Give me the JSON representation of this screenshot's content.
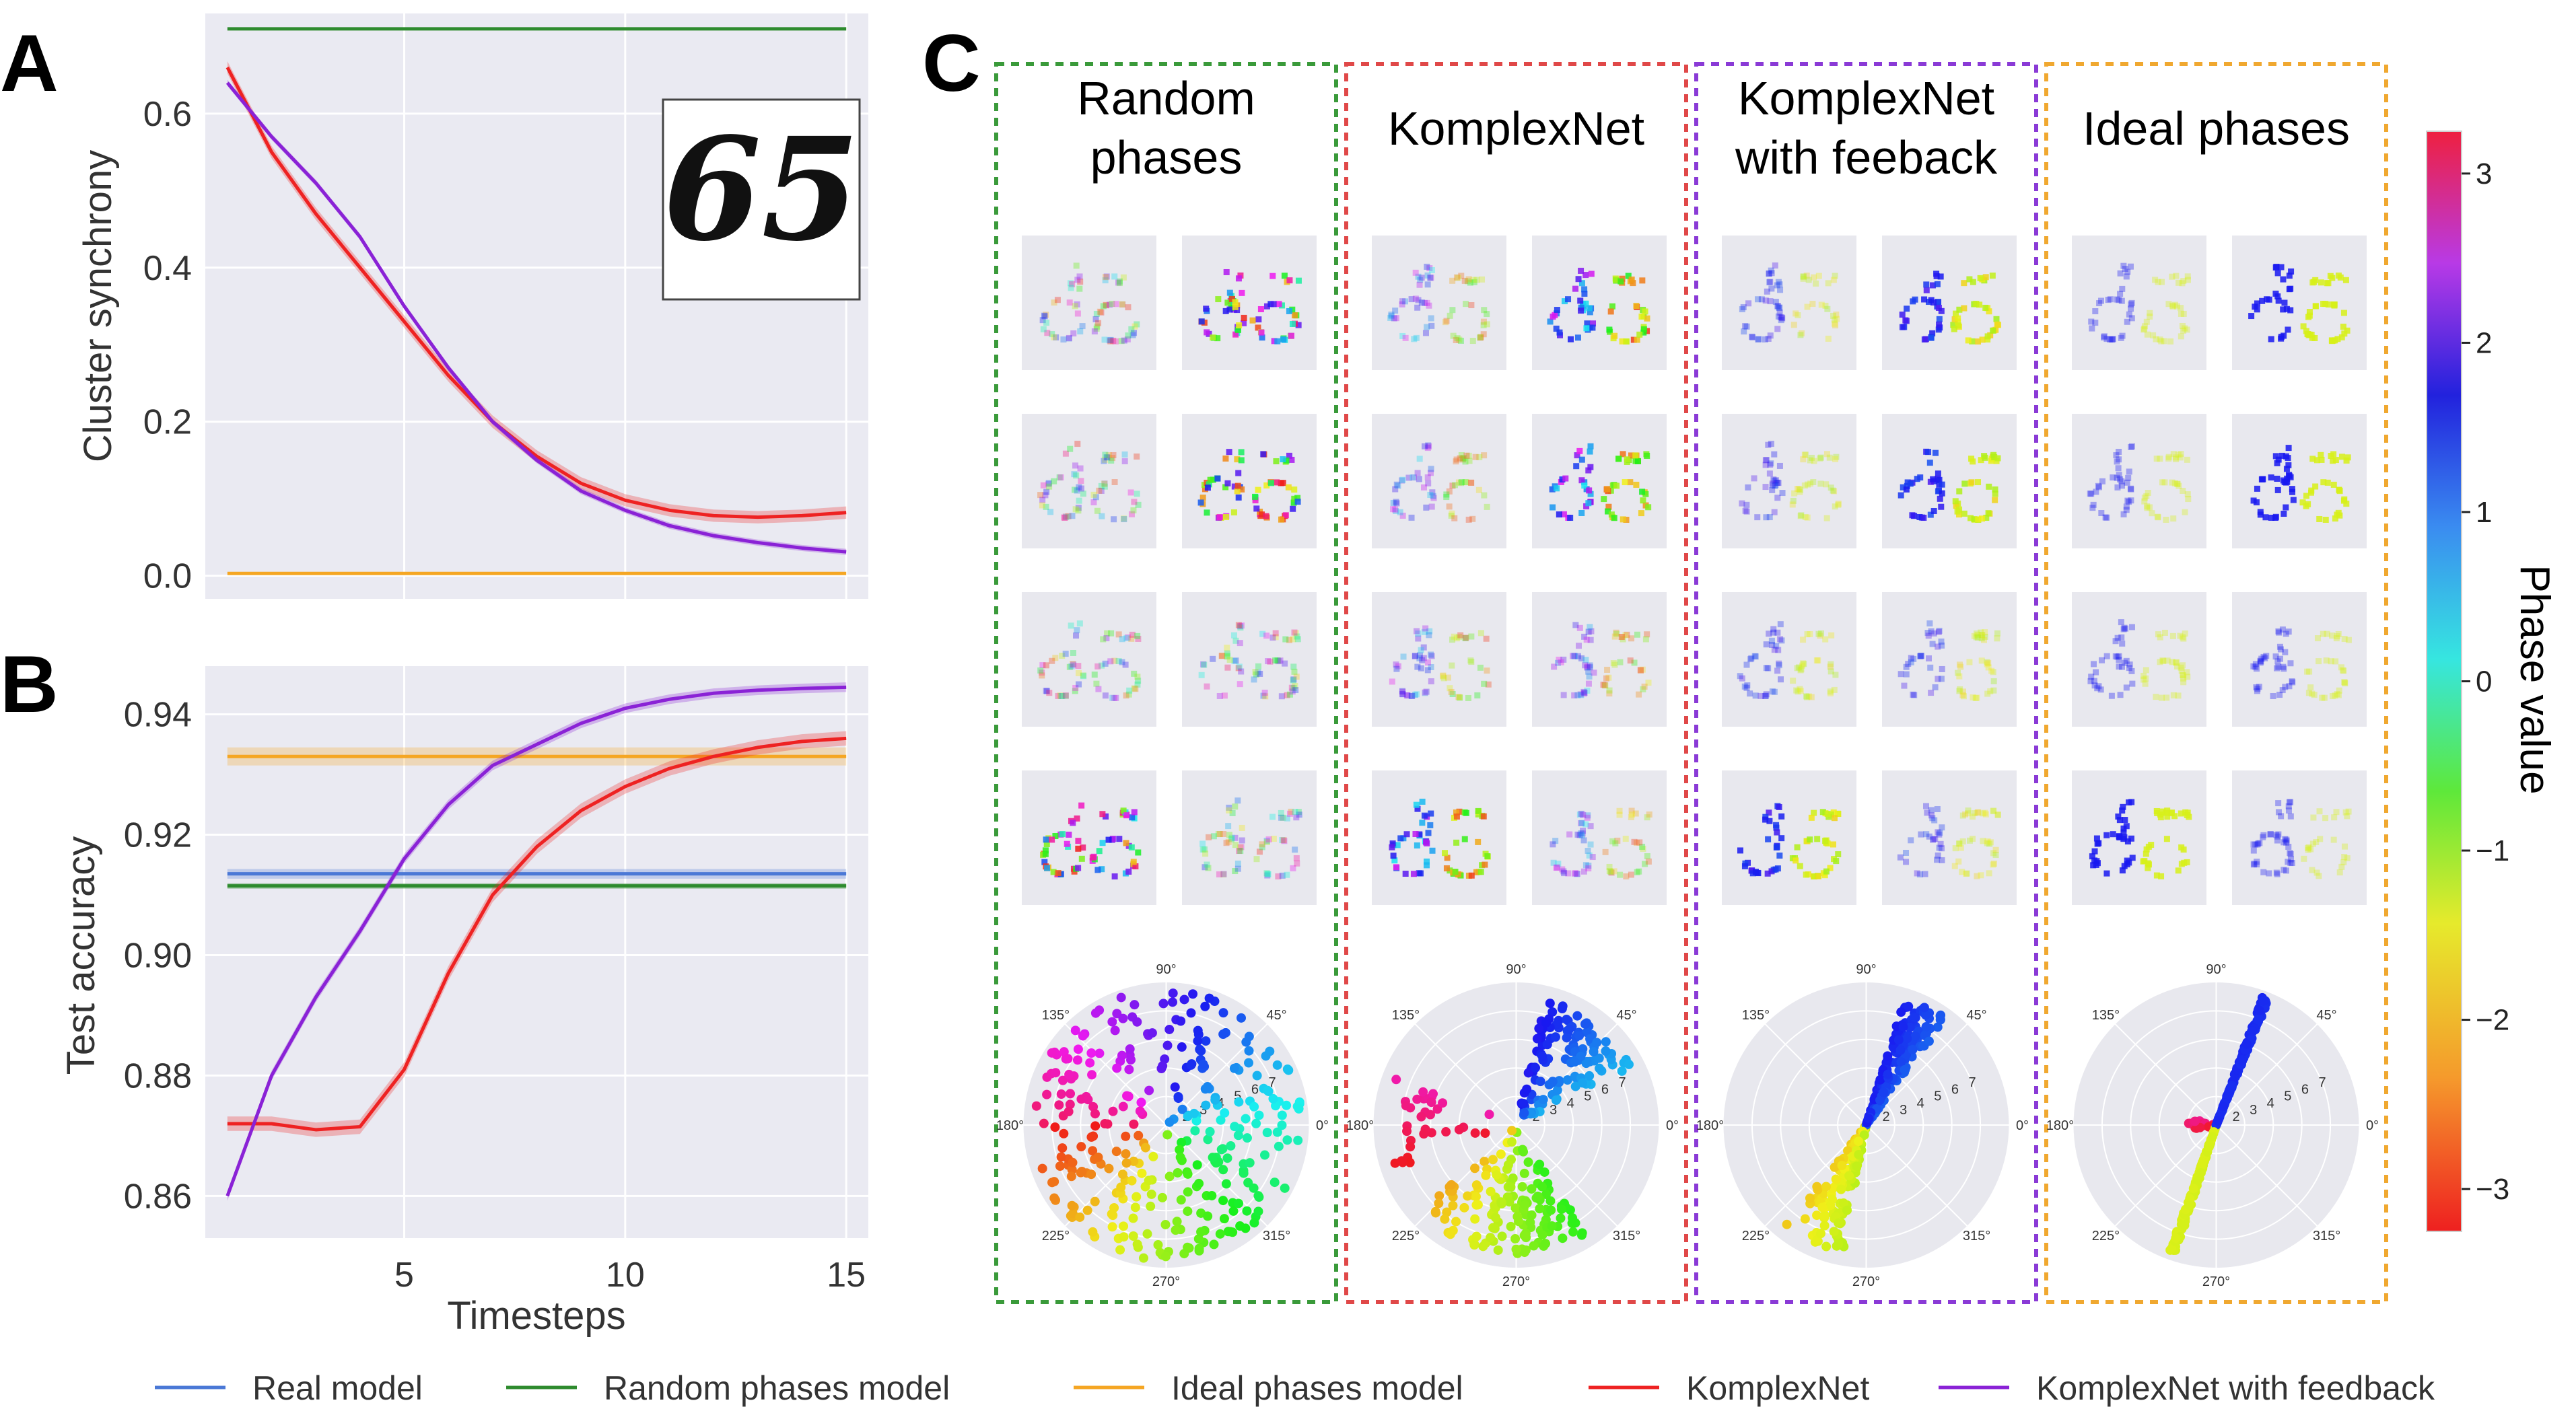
{
  "figure": {
    "panel_letters": [
      "A",
      "B",
      "C"
    ],
    "inset_digits": "65"
  },
  "colors": {
    "real": "#4a78d6",
    "random": "#2e8b2e",
    "ideal": "#f5a623",
    "komplex": "#ee2222",
    "feedback": "#8a22d6",
    "axes_bg": "#eaeaf2",
    "grid": "#ffffff"
  },
  "chart_data": [
    {
      "id": "A",
      "type": "line",
      "title": "",
      "xlabel": "",
      "ylabel": "Cluster synchrony",
      "xlim": [
        0.5,
        15.5
      ],
      "ylim": [
        -0.03,
        0.73
      ],
      "xticks": [
        5,
        10,
        15
      ],
      "yticks": [
        0.0,
        0.2,
        0.4,
        0.6
      ],
      "ytick_labels": [
        "0.0",
        "0.2",
        "0.4",
        "0.6"
      ],
      "x": [
        1,
        2,
        3,
        4,
        5,
        6,
        7,
        8,
        9,
        10,
        11,
        12,
        13,
        14,
        15
      ],
      "series": [
        {
          "key": "random",
          "name": "Random phases model",
          "values": [
            0.71,
            0.71,
            0.71,
            0.71,
            0.71,
            0.71,
            0.71,
            0.71,
            0.71,
            0.71,
            0.71,
            0.71,
            0.71,
            0.71,
            0.71
          ],
          "band": 0
        },
        {
          "key": "ideal",
          "name": "Ideal phases model",
          "values": [
            0.003,
            0.003,
            0.003,
            0.003,
            0.003,
            0.003,
            0.003,
            0.003,
            0.003,
            0.003,
            0.003,
            0.003,
            0.003,
            0.003,
            0.003
          ],
          "band": 0
        },
        {
          "key": "komplex",
          "name": "KomplexNet",
          "values": [
            0.66,
            0.55,
            0.47,
            0.4,
            0.33,
            0.26,
            0.2,
            0.155,
            0.12,
            0.098,
            0.085,
            0.078,
            0.076,
            0.078,
            0.082
          ],
          "band": 0.008
        },
        {
          "key": "feedback",
          "name": "KomplexNet with feedback",
          "values": [
            0.64,
            0.57,
            0.51,
            0.44,
            0.35,
            0.27,
            0.2,
            0.15,
            0.11,
            0.085,
            0.065,
            0.052,
            0.043,
            0.036,
            0.031
          ],
          "band": 0.004
        }
      ]
    },
    {
      "id": "B",
      "type": "line",
      "title": "",
      "xlabel": "Timesteps",
      "ylabel": "Test accuracy",
      "xlim": [
        0.5,
        15.5
      ],
      "ylim": [
        0.853,
        0.948
      ],
      "xticks": [
        5,
        10,
        15
      ],
      "yticks": [
        0.86,
        0.88,
        0.9,
        0.92,
        0.94
      ],
      "ytick_labels": [
        "0.86",
        "0.88",
        "0.90",
        "0.92",
        "0.94"
      ],
      "x": [
        1,
        2,
        3,
        4,
        5,
        6,
        7,
        8,
        9,
        10,
        11,
        12,
        13,
        14,
        15
      ],
      "series": [
        {
          "key": "ideal",
          "name": "Ideal phases model",
          "values": [
            0.933,
            0.933,
            0.933,
            0.933,
            0.933,
            0.933,
            0.933,
            0.933,
            0.933,
            0.933,
            0.933,
            0.933,
            0.933,
            0.933,
            0.933
          ],
          "band": 0.0015
        },
        {
          "key": "real",
          "name": "Real model",
          "values": [
            0.9135,
            0.9135,
            0.9135,
            0.9135,
            0.9135,
            0.9135,
            0.9135,
            0.9135,
            0.9135,
            0.9135,
            0.9135,
            0.9135,
            0.9135,
            0.9135,
            0.9135
          ],
          "band": 0.0008
        },
        {
          "key": "random",
          "name": "Random phases model",
          "values": [
            0.9115,
            0.9115,
            0.9115,
            0.9115,
            0.9115,
            0.9115,
            0.9115,
            0.9115,
            0.9115,
            0.9115,
            0.9115,
            0.9115,
            0.9115,
            0.9115,
            0.9115
          ],
          "band": 0.0005
        },
        {
          "key": "komplex",
          "name": "KomplexNet",
          "values": [
            0.872,
            0.872,
            0.871,
            0.8715,
            0.881,
            0.897,
            0.91,
            0.918,
            0.924,
            0.928,
            0.931,
            0.933,
            0.9345,
            0.9355,
            0.936
          ],
          "band": 0.0012
        },
        {
          "key": "feedback",
          "name": "KomplexNet with feedback",
          "values": [
            0.86,
            0.88,
            0.893,
            0.904,
            0.916,
            0.925,
            0.9315,
            0.935,
            0.9385,
            0.941,
            0.9425,
            0.9435,
            0.944,
            0.9443,
            0.9445
          ],
          "band": 0.0008
        }
      ]
    }
  ],
  "panelC": {
    "columns": [
      {
        "title": [
          "Random",
          "phases"
        ],
        "border": "#3a9a3a",
        "mode": "random"
      },
      {
        "title": [
          "KomplexNet"
        ],
        "border": "#e04848",
        "mode": "komplex"
      },
      {
        "title": [
          "KomplexNet",
          "with feeback"
        ],
        "border": "#8a3ad6",
        "mode": "feedback"
      },
      {
        "title": [
          "Ideal phases"
        ],
        "border": "#f0a830",
        "mode": "ideal"
      }
    ],
    "polar_angle_labels": [
      "90°",
      "45°",
      "0°",
      "315°",
      "270°",
      "225°",
      "180°",
      "135°"
    ],
    "polar_radius_labels": [
      "2",
      "3",
      "4",
      "5",
      "6",
      "7"
    ]
  },
  "colorbar": {
    "label": "Phase value",
    "ticks": [
      "3",
      "2",
      "1",
      "0",
      "−1",
      "−2",
      "−3"
    ]
  },
  "legend": [
    {
      "key": "real",
      "label": "Real model"
    },
    {
      "key": "random",
      "label": "Random phases model"
    },
    {
      "key": "ideal",
      "label": "Ideal phases model"
    },
    {
      "key": "komplex",
      "label": "KomplexNet"
    },
    {
      "key": "feedback",
      "label": "KomplexNet with feedback"
    }
  ]
}
